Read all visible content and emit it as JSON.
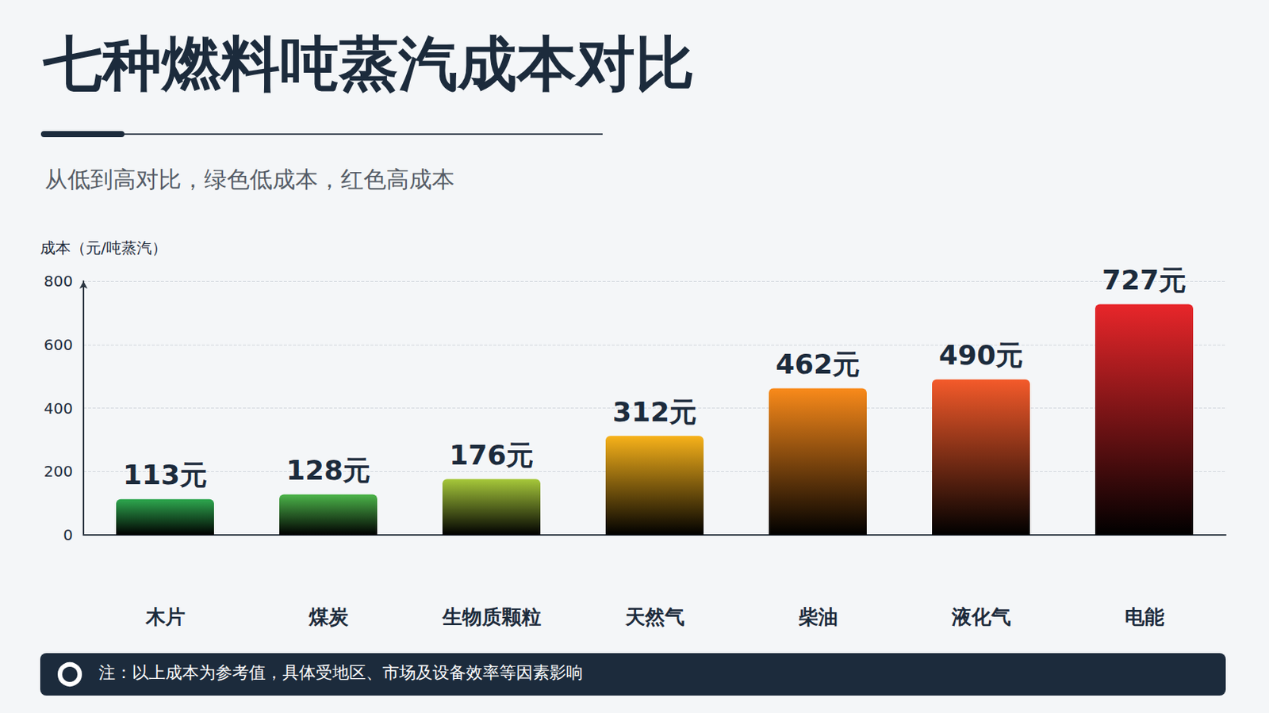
{
  "chart_data": {
    "type": "bar",
    "title": "七种燃料吨蒸汽成本对比",
    "subtitle": "从低到高对比，绿色低成本，红色高成本",
    "y_label": "成本（元/吨蒸汽）",
    "categories": [
      "木片",
      "煤炭",
      "生物质颗粒",
      "天然气",
      "柴油",
      "液化气",
      "电能"
    ],
    "values": [
      113,
      128,
      176,
      312,
      462,
      490,
      727
    ],
    "value_labels": [
      "113元",
      "128元",
      "176元",
      "312元",
      "462元",
      "490元",
      "727元"
    ],
    "colors": [
      "#2ea84f",
      "#4cb54a",
      "#a6c83a",
      "#f7b21a",
      "#f98a1a",
      "#f45a2a",
      "#e8262a"
    ],
    "ylim": [
      0,
      800
    ],
    "yticks": [
      0,
      200,
      400,
      600,
      800
    ],
    "grid": true,
    "data_labels": true,
    "note": "注：以上成本为参考值，具体受地区、市场及设备效率等因素影响"
  }
}
